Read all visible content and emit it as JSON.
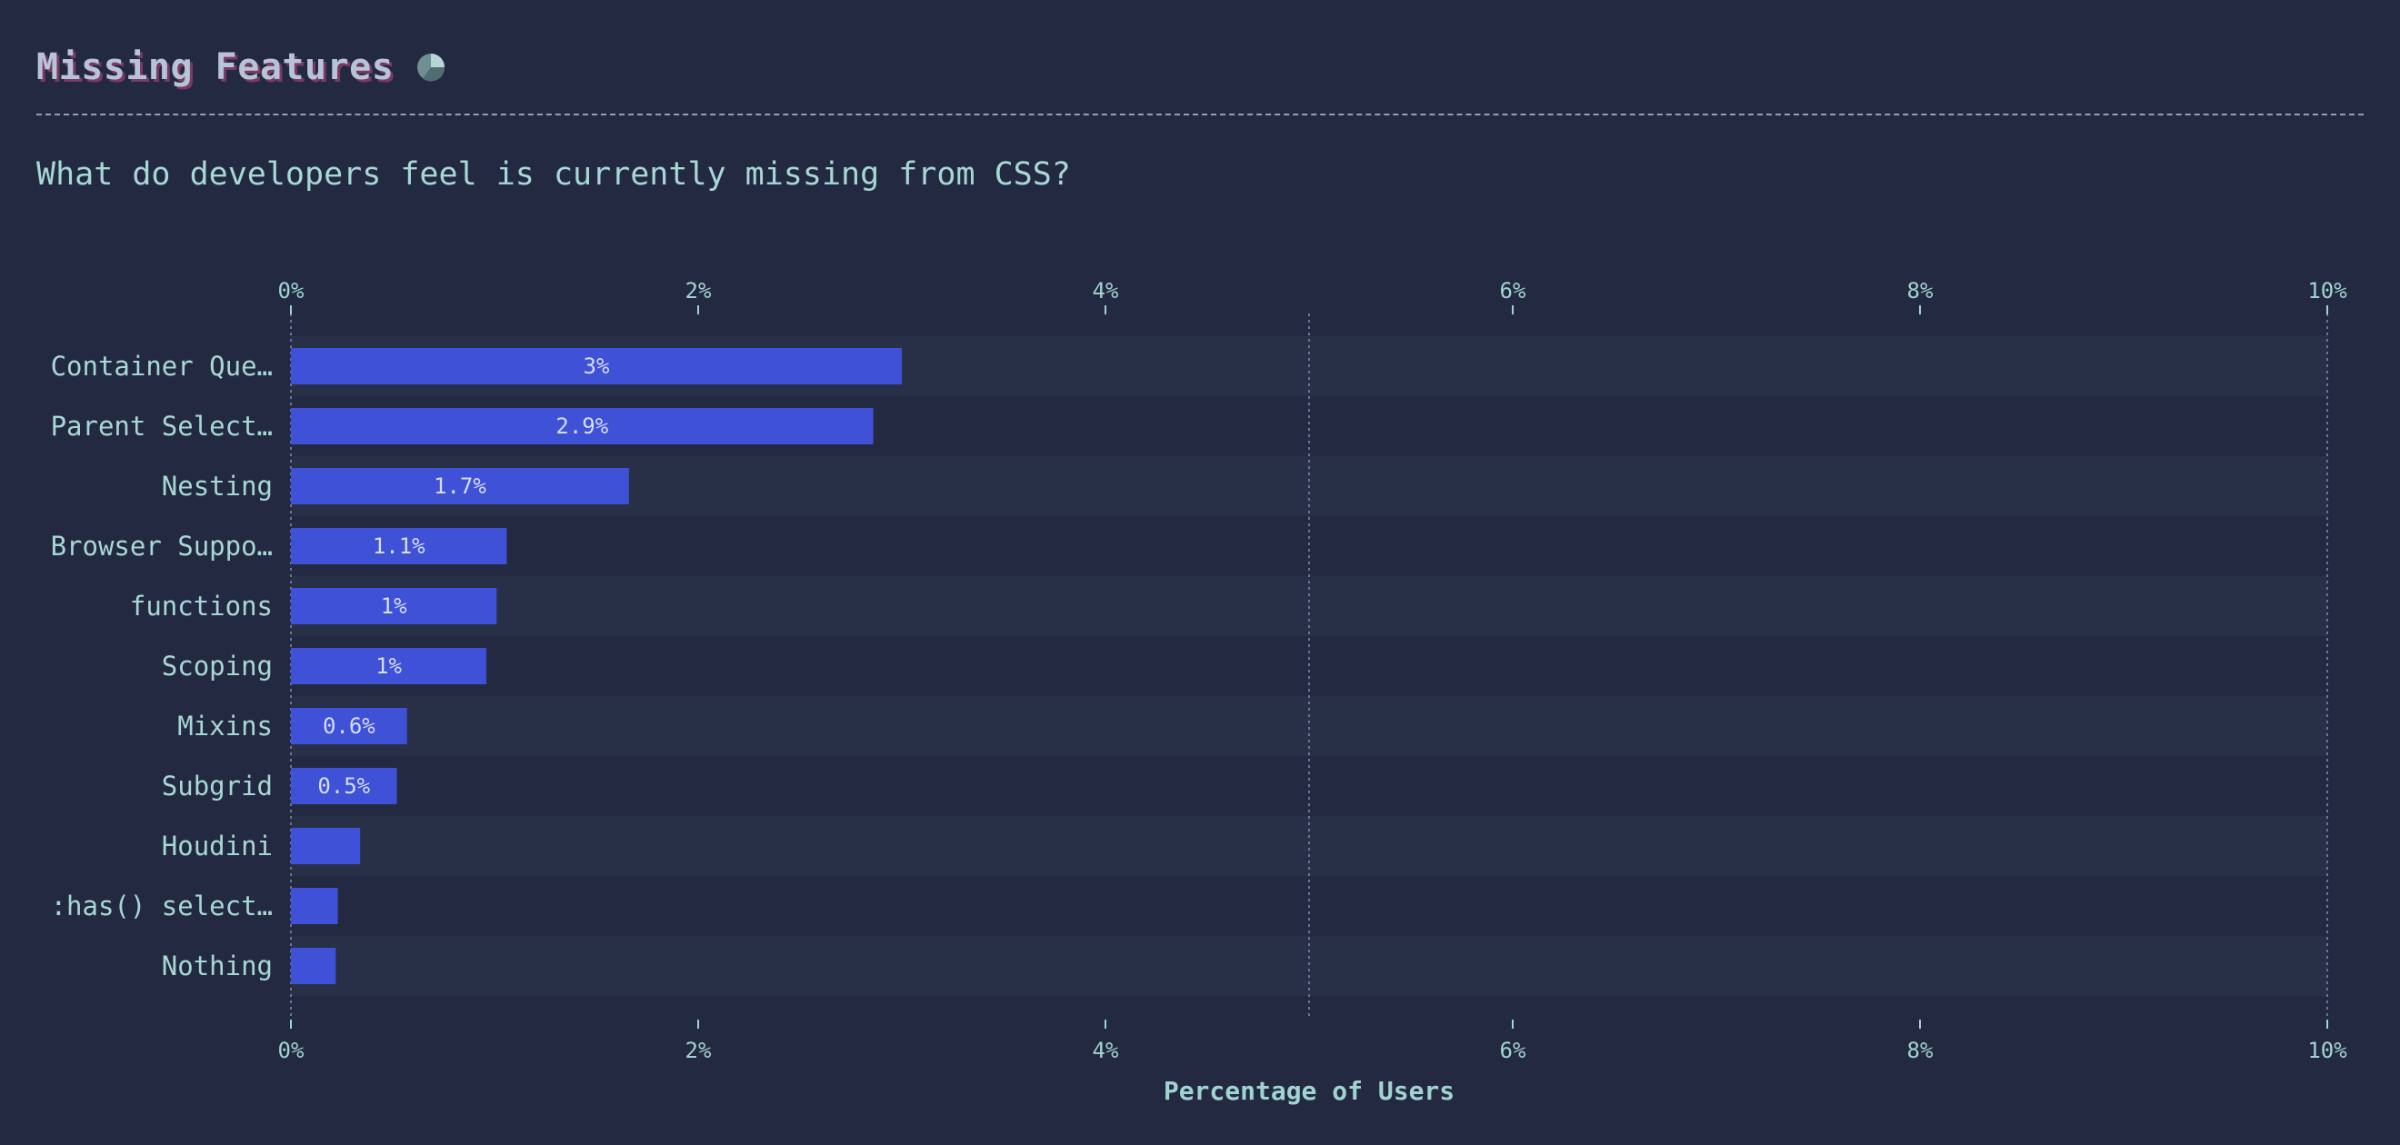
{
  "header": {
    "title": "Missing Features",
    "icon": "pie-chart-icon",
    "question": "What do developers feel is currently missing from CSS?"
  },
  "colors": {
    "background": "#232941",
    "bar": "#3f51d6",
    "stripe": "#283048",
    "text": "#9fd4d1"
  },
  "chart_data": {
    "type": "bar",
    "orientation": "horizontal",
    "categories": [
      "Container Que…",
      "Parent Select…",
      "Nesting",
      "Browser Suppo…",
      "functions",
      "Scoping",
      "Mixins",
      "Subgrid",
      "Houdini",
      ":has() select…",
      "Nothing"
    ],
    "values": [
      3.0,
      2.86,
      1.66,
      1.06,
      1.01,
      0.96,
      0.57,
      0.52,
      0.34,
      0.23,
      0.22
    ],
    "value_labels": [
      "3%",
      "2.9%",
      "1.7%",
      "1.1%",
      "1%",
      "1%",
      "0.6%",
      "0.5%",
      "",
      "",
      ""
    ],
    "xlim": [
      0,
      10
    ],
    "x_ticks": [
      "0%",
      "2%",
      "4%",
      "6%",
      "8%",
      "10%"
    ],
    "xlabel": "Percentage of Users",
    "ylabel": "",
    "reference_line": 5,
    "grid": true
  }
}
